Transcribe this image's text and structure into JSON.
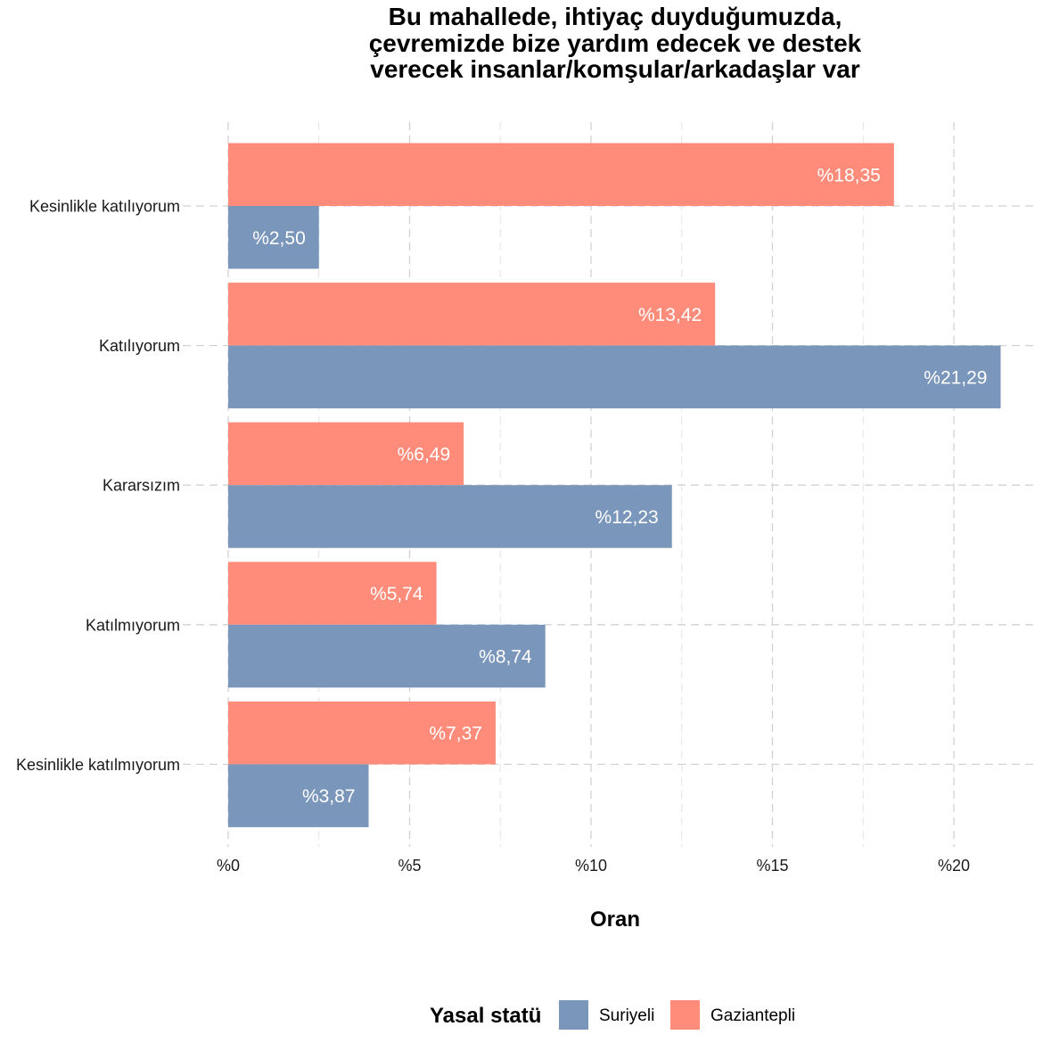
{
  "chart_data": {
    "type": "bar",
    "orientation": "horizontal",
    "title": "Bu mahallede, ihtiyaç duyduğumuzda,\nçevremizde bize yardım edecek ve destek\nverecek insanlar/komşular/arkadaşlar var",
    "xlabel": "Oran",
    "ylabel": "",
    "xlim": [
      0,
      22
    ],
    "x_ticks": [
      0,
      5,
      10,
      15,
      20
    ],
    "x_tick_labels": [
      "%0",
      "%5",
      "%10",
      "%15",
      "%20"
    ],
    "grid": true,
    "categories": [
      "Kesinlikle katılıyorum",
      "Katılıyorum",
      "Kararsızım",
      "Katılmıyorum",
      "Kesinlikle katılmıyorum"
    ],
    "series": [
      {
        "name": "Gaziantepli",
        "color": "#FF8C7A",
        "values": [
          18.35,
          13.42,
          6.49,
          5.74,
          7.37
        ],
        "labels": [
          "%18,35",
          "%13,42",
          "%6,49",
          "%5,74",
          "%7,37"
        ]
      },
      {
        "name": "Suriyeli",
        "color": "#7A96BA",
        "values": [
          2.5,
          21.29,
          12.23,
          8.74,
          3.87
        ],
        "labels": [
          "%2,50",
          "%21,29",
          "%12,23",
          "%8,74",
          "%3,87"
        ]
      }
    ],
    "legend": {
      "title": "Yasal statü",
      "position": "bottom",
      "entries": [
        {
          "name": "Suriyeli",
          "color": "#7A96BA"
        },
        {
          "name": "Gaziantepli",
          "color": "#FF8C7A"
        }
      ]
    }
  }
}
